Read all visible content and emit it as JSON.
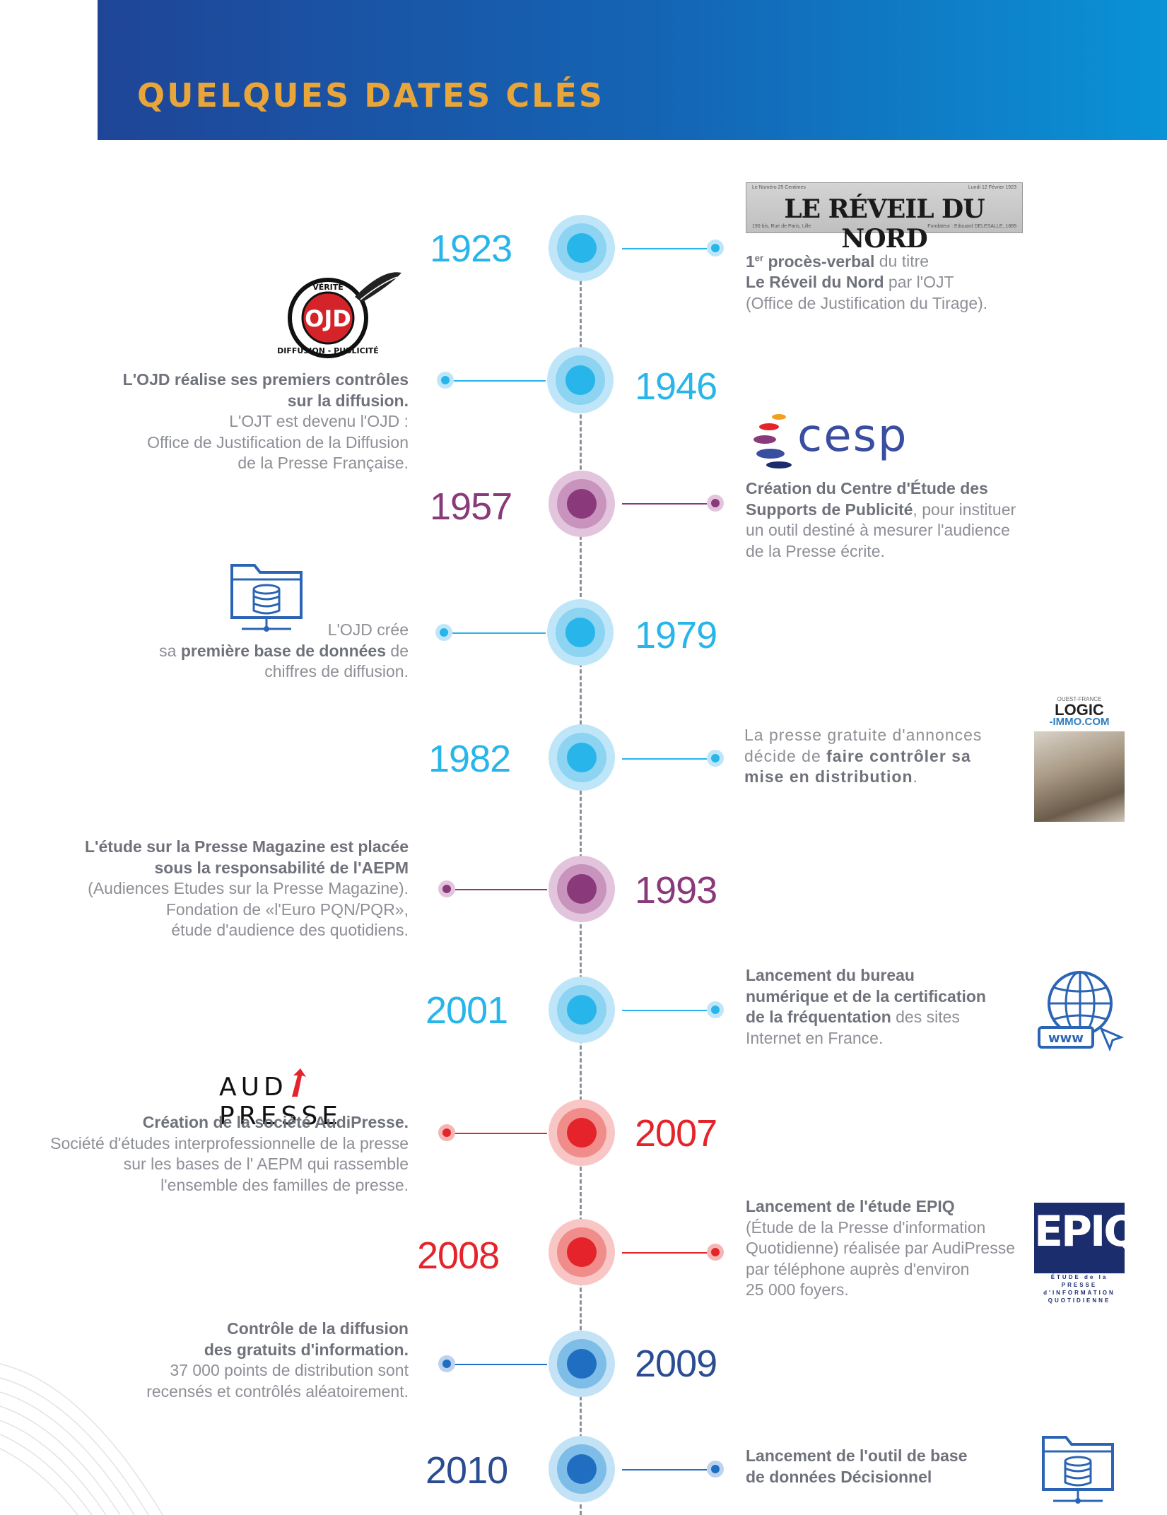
{
  "header": {
    "title": "QUELQUES DATES CLÉS"
  },
  "colors": {
    "cyan": "#27b5ea",
    "purple": "#8a3a7a",
    "red": "#e4242a",
    "navy": "#2b4c93",
    "header_start": "#1f4597",
    "header_end": "#0a92d6",
    "title_gold": "#e7a53a"
  },
  "logos": {
    "reveil": {
      "name": "LE RÉVEIL DU NORD",
      "small_left": "Le Numéro 25 Centimes",
      "small_right": "Lundi 12 Février 1923",
      "small_left2": "190 bis, Rue de Paris, Lille",
      "small_right2": "Fondateur : Edouard DELESALLE, 1889"
    },
    "ojd": {
      "mark": "OJD",
      "ring_top": "VÉRITÉ",
      "ring_bottom": "DIFFUSION - PUBLICITÉ"
    },
    "cesp": {
      "name": "cesp"
    },
    "logic": {
      "line1": "OUEST-FRANCE",
      "line2": "LOGIC",
      "line3": "-IMMO.COM"
    },
    "audipresse": {
      "left": "AUD",
      "right": "PRESSE"
    },
    "epiq": {
      "name": "EPIQ",
      "sub1": "ÉTUDE de la PRESSE",
      "sub2": "d'INFORMATION",
      "sub3": "QUOTIDIENNE"
    },
    "www": {
      "label": "www"
    }
  },
  "events": [
    {
      "year": "1923",
      "line1_sup": "er",
      "line1_pre": "1",
      "line1_bold": " procès-verbal",
      "line1_rest": " du titre",
      "line2_bold": "Le Réveil du Nord",
      "line2_rest": " par l'OJT",
      "line3": "(Office de Justification du Tirage)."
    },
    {
      "year": "1946",
      "line1": "L'OJD réalise ses premiers contrôles",
      "line2": "sur la diffusion.",
      "line3": "L'OJT est devenu l'OJD :",
      "line4": "Office de Justification de la Diffusion",
      "line5": "de la Presse Française."
    },
    {
      "year": "1957",
      "line1": "Création du Centre d'Étude des",
      "line2_bold": "Supports de Publicité",
      "line2_rest": ", pour instituer",
      "line3": "un outil destiné à mesurer l'audience",
      "line4": "de la Presse écrite."
    },
    {
      "year": "1979",
      "line1": "L'OJD crée",
      "line2_pre": "sa ",
      "line2_bold": "première base de données",
      "line2_rest": " de",
      "line3": "chiffres de diffusion."
    },
    {
      "year": "1982",
      "line1": "La presse gratuite d'annonces",
      "line2_pre": "décide de ",
      "line2_bold": "faire contrôler sa",
      "line3_bold": "mise en distribution",
      "line3_rest": "."
    },
    {
      "year": "1993",
      "line1": "L'étude sur la Presse Magazine est placée",
      "line2": "sous la responsabilité de l'AEPM",
      "line3": "(Audiences Etudes sur la Presse Magazine).",
      "line4": "Fondation de «l'Euro PQN/PQR»,",
      "line5": "étude d'audience des quotidiens."
    },
    {
      "year": "2001",
      "line1": "Lancement du bureau",
      "line2": "numérique et de la certification",
      "line3_bold": "de la fréquentation",
      "line3_rest": " des sites",
      "line4": "Internet en France."
    },
    {
      "year": "2007",
      "line1": "Création de la société AudiPresse.",
      "line2": "Société d'études interprofessionnelle de la presse",
      "line3": "sur les bases de l' AEPM qui rassemble",
      "line4": "l'ensemble des familles de presse."
    },
    {
      "year": "2008",
      "line1": "Lancement de l'étude EPIQ",
      "line2": "(Étude de la Presse d'information",
      "line3": "Quotidienne) réalisée par AudiPresse",
      "line4": "par téléphone auprès d'environ",
      "line5": "25 000 foyers."
    },
    {
      "year": "2009",
      "line1": "Contrôle de la diffusion",
      "line2": "des gratuits d'information.",
      "line3": "37 000 points de distribution sont",
      "line4": "recensés et contrôlés aléatoirement."
    },
    {
      "year": "2010",
      "line1": "Lancement de l'outil de base",
      "line2": "de données Décisionnel"
    }
  ]
}
